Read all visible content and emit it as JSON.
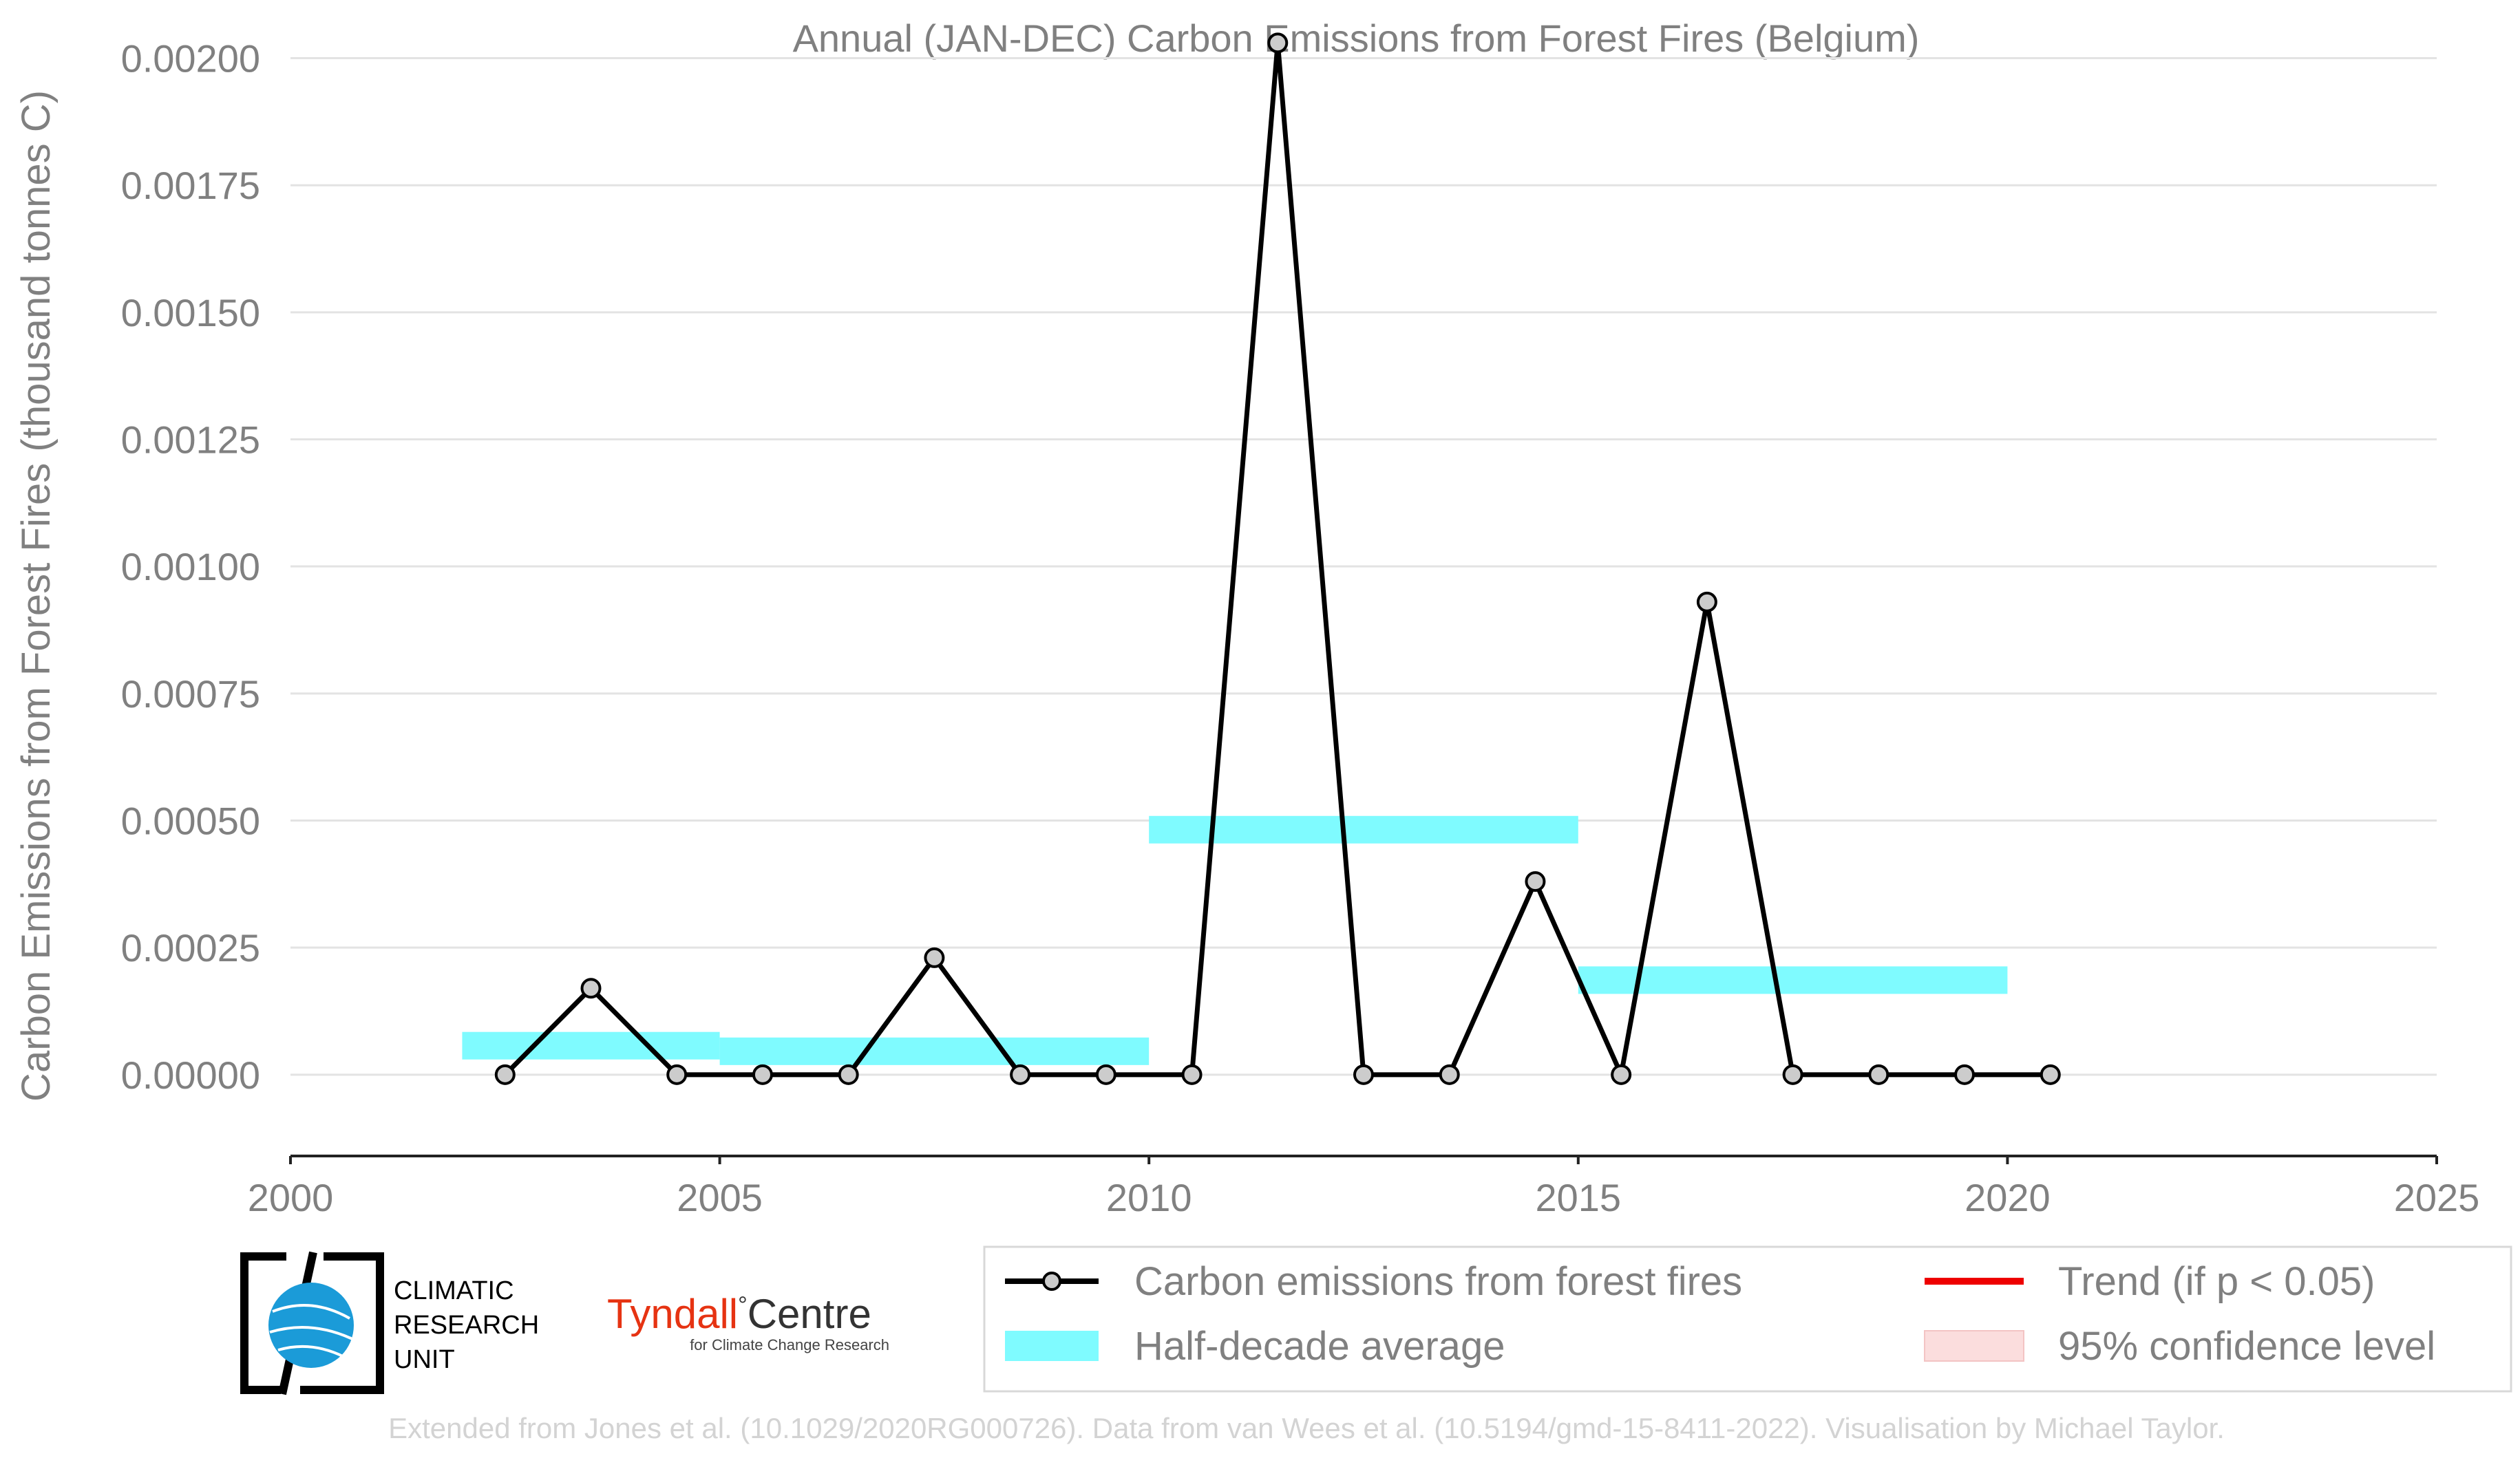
{
  "chart_data": {
    "type": "line",
    "title": "Annual (JAN-DEC) Carbon Emissions from Forest Fires (Belgium)",
    "ylabel": "Carbon Emissions from Forest Fires (thousand tonnes C)",
    "xlabel": "",
    "xlim": [
      2000,
      2025
    ],
    "ylim": [
      -0.00016,
      0.00204
    ],
    "xticks": [
      "2000",
      "2005",
      "2010",
      "2015",
      "2020",
      "2025"
    ],
    "yticks": [
      "0.00000",
      "0.00025",
      "0.00050",
      "0.00075",
      "0.00100",
      "0.00125",
      "0.00150",
      "0.00175",
      "0.00200"
    ],
    "grid": "horizontal",
    "legend_position": "bottom-right",
    "colors": {
      "line": "#000000",
      "marker": "#cccccc",
      "halfdecade": "#7ffbff",
      "trend": "#ee0000",
      "ci": "#fbdddd",
      "text": "#808080"
    },
    "series": [
      {
        "name": "Carbon emissions from forest fires",
        "x": [
          2002.5,
          2003.5,
          2004.5,
          2005.5,
          2006.5,
          2007.5,
          2008.5,
          2009.5,
          2010.5,
          2011.5,
          2012.5,
          2013.5,
          2014.5,
          2015.5,
          2016.5,
          2017.5,
          2018.5,
          2019.5,
          2020.5
        ],
        "values": [
          0.0,
          0.00017,
          0.0,
          0.0,
          0.0,
          0.00023,
          0.0,
          0.0,
          0.0,
          0.00203,
          0.0,
          0.0,
          0.00038,
          0.0,
          0.00093,
          0.0,
          0.0,
          0.0,
          0.0
        ]
      }
    ],
    "half_decade_average": {
      "name": "Half-decade average",
      "bars": [
        {
          "x0": 2002,
          "x1": 2005,
          "value": 5.7e-05
        },
        {
          "x0": 2005,
          "x1": 2010,
          "value": 4.6e-05
        },
        {
          "x0": 2010,
          "x1": 2015,
          "value": 0.000482
        },
        {
          "x0": 2015,
          "x1": 2020,
          "value": 0.000186
        }
      ]
    },
    "legend": [
      {
        "label": "Carbon emissions from forest fires",
        "kind": "line-marker"
      },
      {
        "label": "Trend (if p < 0.05)",
        "kind": "line-red"
      },
      {
        "label": "Half-decade average",
        "kind": "band-cyan"
      },
      {
        "label": "95% confidence level",
        "kind": "band-pink"
      }
    ]
  },
  "logos": {
    "cru": {
      "line1": "CLIMATIC",
      "line2": "RESEARCH",
      "line3": "UNIT"
    },
    "tyndall": {
      "main_red": "Tyndall",
      "degree": "°",
      "main_black": "Centre",
      "sub": "for Climate Change Research"
    }
  },
  "footer": "Extended from Jones et al. (10.1029/2020RG000726). Data from van Wees et al. (10.5194/gmd-15-8411-2022). Visualisation by Michael Taylor."
}
